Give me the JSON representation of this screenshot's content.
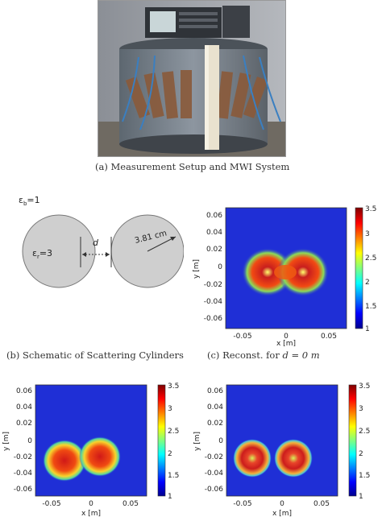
{
  "figure": {
    "caption_a": "(a) Measurement Setup and MWI System",
    "caption_b": "(b) Schematic of Scattering Cylinders",
    "caption_c_prefix": "(c) Reconst. for ",
    "caption_c_math": "d = 0 m"
  },
  "schematic": {
    "background_eps": "ε",
    "background_sub": "b",
    "background_val": "=1",
    "cyl_eps": "ε",
    "cyl_sub": "r",
    "cyl_val": "=3",
    "distance": "d",
    "radius": "3.81 cm"
  },
  "plots": {
    "xlabel": "x [m]",
    "ylabel": "y [m]",
    "xticks": [
      "-0.05",
      "0",
      "0.05"
    ],
    "yticks": [
      "0.06",
      "0.04",
      "0.02",
      "0",
      "-0.02",
      "-0.04",
      "-0.06"
    ],
    "cbticks_c": [
      "3.5",
      "3",
      "2.5",
      "2",
      "1.5",
      "1"
    ],
    "cbticks_d": [
      "3.5",
      "3",
      "2.5",
      "2",
      "1.5",
      "1"
    ],
    "cbticks_e": [
      "3.5",
      "3",
      "2.5",
      "2",
      "1.5",
      "1"
    ]
  },
  "chart_data": [
    {
      "type": "heatmap",
      "xlabel": "x [m]",
      "ylabel": "y [m]",
      "xlim": [
        -0.07,
        0.07
      ],
      "ylim": [
        -0.07,
        0.07
      ],
      "clim": [
        1,
        3.5
      ],
      "colormap": "jet",
      "blobs": [
        {
          "cx": -0.02,
          "cy": 0.0,
          "peak": 3.3
        },
        {
          "cx": 0.02,
          "cy": 0.0,
          "peak": 3.3
        }
      ]
    },
    {
      "type": "heatmap",
      "xlabel": "x [m]",
      "ylabel": "y [m]",
      "xlim": [
        -0.07,
        0.07
      ],
      "ylim": [
        -0.07,
        0.07
      ],
      "clim": [
        1,
        3.5
      ],
      "colormap": "jet",
      "blobs": [
        {
          "cx": -0.025,
          "cy": -0.012,
          "peak": 3.3
        },
        {
          "cx": 0.012,
          "cy": -0.008,
          "peak": 3.3
        }
      ]
    },
    {
      "type": "heatmap",
      "xlabel": "x [m]",
      "ylabel": "y [m]",
      "xlim": [
        -0.07,
        0.07
      ],
      "ylim": [
        -0.07,
        0.07
      ],
      "clim": [
        1,
        3.5
      ],
      "colormap": "jet",
      "blobs": [
        {
          "cx": -0.03,
          "cy": -0.01,
          "peak": 3.0
        },
        {
          "cx": 0.02,
          "cy": -0.01,
          "peak": 3.0
        }
      ]
    }
  ]
}
